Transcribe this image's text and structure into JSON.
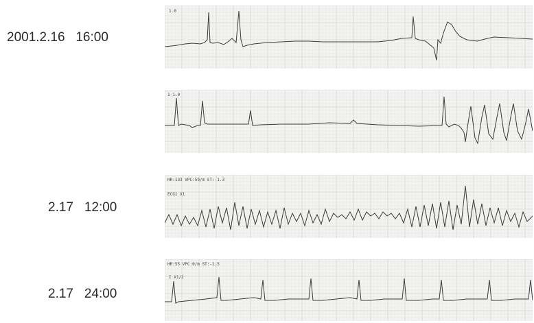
{
  "labels": {
    "strip1": "2001.2.16   16:00",
    "strip3": "2.17   12:00",
    "strip4": "2.17   24:00"
  },
  "strip_headers": {
    "strip1": "1.0",
    "strip2": "1-1.0",
    "strip3_line1": "HR:133  VPC:59/m  ST:-1.3",
    "strip3_line2": "ECG1 X1",
    "strip4_line1": "HR:55  VPC:0/m  ST:-1.5",
    "strip4_line2": "I  X1/2"
  },
  "colors": {
    "trace": "#3a3a3a",
    "grid_minor": "#dcdcda",
    "grid_major": "#c9c9c6",
    "paper": "#f3f3f1"
  }
}
